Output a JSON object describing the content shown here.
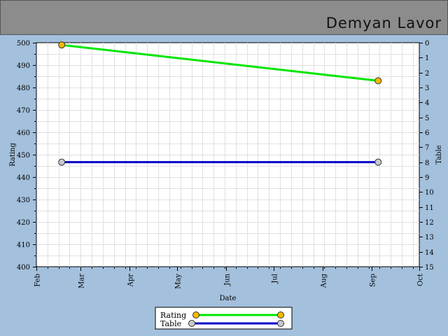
{
  "header": {
    "title": "Demyan Lavor"
  },
  "chart_data": {
    "type": "line",
    "xlabel": "Date",
    "ylabel": "Rating",
    "y2label": "Table",
    "x_ticks": [
      "Feb",
      "Mar",
      "Apr",
      "May",
      "Jun",
      "Jul",
      "Aug",
      "Sep",
      "Oct"
    ],
    "ylim": [
      400,
      500
    ],
    "y_ticks": [
      500,
      490,
      480,
      470,
      460,
      450,
      440,
      430,
      420,
      410,
      400
    ],
    "y2lim": [
      0,
      15
    ],
    "y2_inverted": true,
    "y2_ticks": [
      0,
      1,
      2,
      3,
      4,
      5,
      6,
      7,
      8,
      9,
      10,
      11,
      12,
      13,
      14,
      15
    ],
    "grid": true,
    "legend_position": "bottom-center",
    "series": [
      {
        "name": "Rating",
        "axis": "left",
        "color": "#00e600",
        "marker_color": "#f5b800",
        "x": [
          "2013-02-17",
          "2013-09-05"
        ],
        "y": [
          499,
          483
        ]
      },
      {
        "name": "Table",
        "axis": "right",
        "color": "#0000c8",
        "marker_color": "#c8c8d0",
        "x": [
          "2013-02-17",
          "2013-09-05"
        ],
        "y": [
          8,
          8
        ]
      }
    ]
  }
}
